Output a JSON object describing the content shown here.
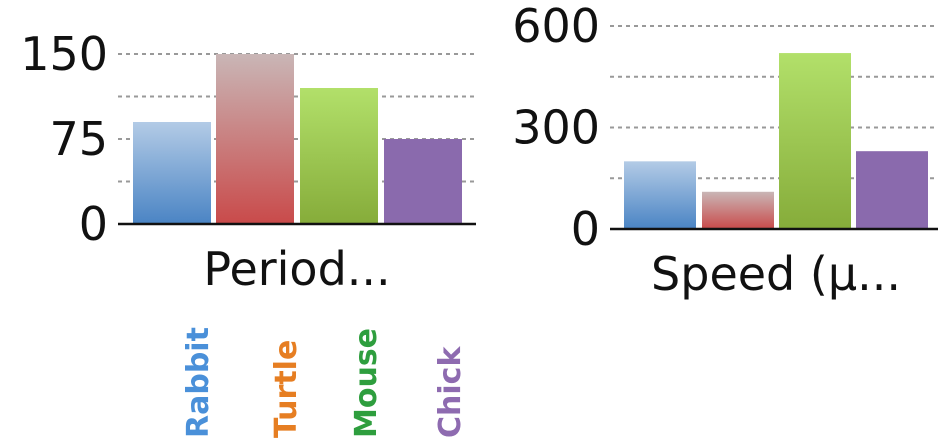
{
  "chart_data": [
    {
      "type": "bar",
      "title": "Period...",
      "categories": [
        "Rabbit",
        "Turtle",
        "Mouse",
        "Chick"
      ],
      "values": [
        90,
        150,
        120,
        75
      ],
      "ylim": [
        0,
        180
      ],
      "yticks": [
        "0",
        "75",
        "150"
      ],
      "grid": true
    },
    {
      "type": "bar",
      "title": "Speed (μ...",
      "categories": [
        "Rabbit",
        "Turtle",
        "Mouse",
        "Chick"
      ],
      "values": [
        200,
        110,
        520,
        230
      ],
      "ylim": [
        0,
        600
      ],
      "yticks": [
        "0",
        "300",
        "600"
      ],
      "grid": true
    }
  ],
  "legend": {
    "items": [
      {
        "label": "Rabbit",
        "color": "#4a90d9"
      },
      {
        "label": "Turtle",
        "color": "#e67e22"
      },
      {
        "label": "Mouse",
        "color": "#2e9e3e"
      },
      {
        "label": "Chick",
        "color": "#8e6bb0"
      }
    ]
  },
  "colors": {
    "bar_top": [
      "#b3cbe6",
      "#c9b6b6",
      "#b2e06a",
      "#8a6aad"
    ],
    "bar_bottom": [
      "#4a84c4",
      "#c94a4a",
      "#86ac3a",
      "#8a6aad"
    ]
  }
}
